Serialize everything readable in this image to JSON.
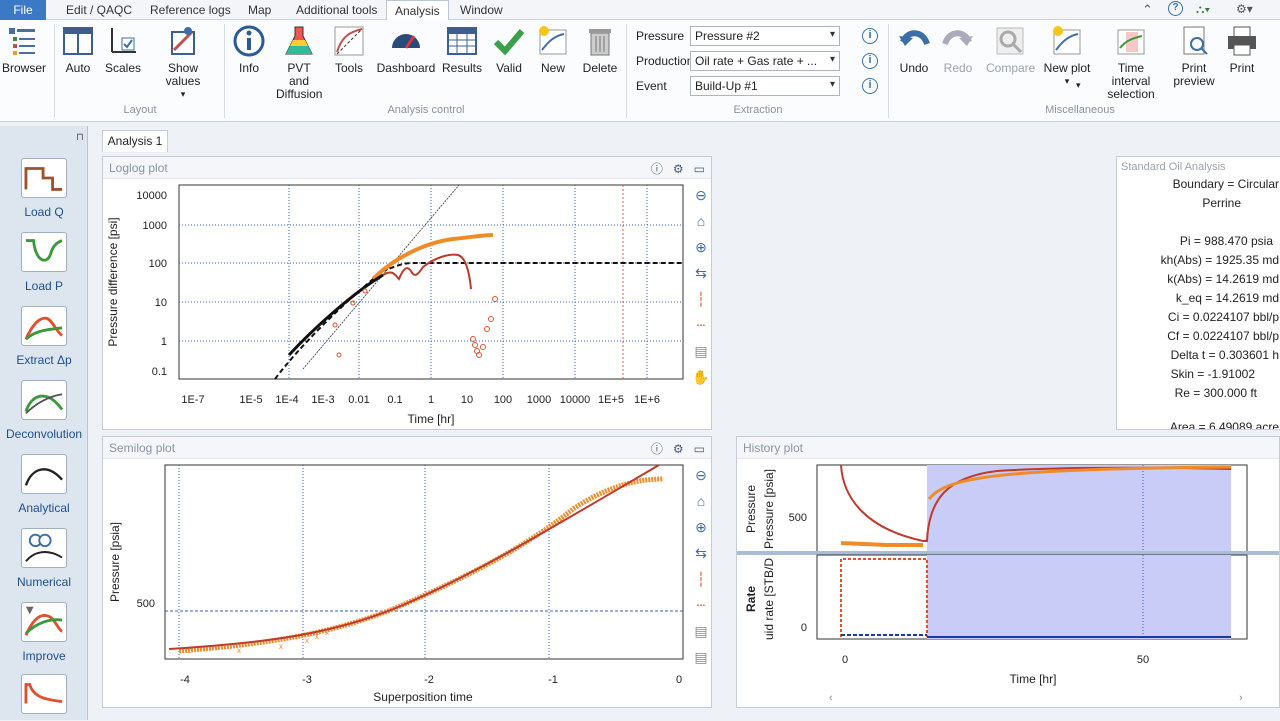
{
  "menu": {
    "file": "File",
    "items": [
      "Edit / QAQC",
      "Reference logs",
      "Map",
      "Additional tools",
      "Analysis",
      "Window"
    ],
    "active": "Analysis"
  },
  "ribbon": {
    "browser": "Browser",
    "layout": {
      "label": "Layout",
      "auto": "Auto",
      "scales": "Scales",
      "show_values": "Show values"
    },
    "analysis_control": {
      "label": "Analysis control",
      "info": "Info",
      "pvt_1": "PVT and",
      "pvt_2": "Diffusion",
      "tools": "Tools",
      "dashboard": "Dashboard",
      "results": "Results",
      "valid": "Valid",
      "new": "New",
      "delete": "Delete"
    },
    "extraction": {
      "label": "Extraction",
      "pressure_label": "Pressure",
      "pressure_value": "Pressure #2",
      "production_label": "Production",
      "production_value": "Oil rate + Gas rate + ...",
      "event_label": "Event",
      "event_value": "Build-Up #1"
    },
    "misc": {
      "label": "Miscellaneous",
      "undo": "Undo",
      "redo": "Redo",
      "compare": "Compare",
      "new_plot": "New plot",
      "time_interval_1": "Time interval",
      "time_interval_2": "selection",
      "print_preview_1": "Print",
      "print_preview_2": "preview",
      "print": "Print"
    }
  },
  "sidebar": [
    {
      "label": "Load Q",
      "icon": "load-q-icon"
    },
    {
      "label": "Load P",
      "icon": "load-p-icon"
    },
    {
      "label": "Extract Δp",
      "icon": "extract-dp-icon"
    },
    {
      "label": "Deconvolution",
      "icon": "deconvolution-icon"
    },
    {
      "label": "Analytical",
      "icon": "analytical-icon"
    },
    {
      "label": "Numerical",
      "icon": "numerical-icon"
    },
    {
      "label": "Improve",
      "icon": "improve-icon"
    }
  ],
  "analysis_tab": "Analysis 1",
  "loglog": {
    "title": "Loglog plot",
    "xlabel": "Time [hr]",
    "ylabel": "Pressure difference [psi]",
    "xticks": [
      "1E-7",
      "1E-5",
      "1E-4",
      "1E-3",
      "0.01",
      "0.1",
      "1",
      "10",
      "100",
      "1000",
      "10000",
      "1E+5",
      "1E+6"
    ],
    "yticks": [
      "10000",
      "1000",
      "100",
      "10",
      "1",
      "0.1"
    ]
  },
  "semilog": {
    "title": "Semilog plot",
    "xlabel": "Superposition time",
    "ylabel": "Pressure [psia]",
    "xticks": [
      "-4",
      "-3",
      "-2",
      "-1",
      "0"
    ],
    "ytick": "500"
  },
  "history": {
    "title": "History plot",
    "xlabel": "Time [hr]",
    "pressure_label": "Pressure",
    "pressure_axis": "Pressure [psia]",
    "pressure_tick": "500",
    "rate_label": "Rate",
    "rate_axis": "uid rate [STB/D",
    "rate_tick": "0",
    "xticks": [
      "0",
      "50"
    ]
  },
  "results": {
    "title": "Standard Oil Analysis",
    "lines": [
      "Boundary = Circular",
      "Perrine",
      "",
      "Pi = 988.470 psia",
      "kh(Abs) = 1925.35 md",
      "k(Abs) = 14.2619 md",
      "k_eq = 14.2619 md",
      "Ci = 0.0224107 bbl/p",
      "Cf = 0.0224107 bbl/p",
      "Delta t = 0.303601 h",
      "Skin = -1.91002",
      "Re = 300.000 ft",
      "",
      "Area = 6.49089 acre"
    ]
  },
  "chart_data": [
    {
      "type": "scatter",
      "title": "Loglog plot",
      "xlabel": "Time [hr]",
      "ylabel": "Pressure difference [psi]",
      "xscale": "log",
      "yscale": "log",
      "xlim": [
        1e-08,
        10000000.0
      ],
      "ylim": [
        0.05,
        20000
      ],
      "series": [
        {
          "values": [
            [
              0.0001,
              0.4
            ],
            [
              0.001,
              3
            ],
            [
              0.01,
              20
            ],
            [
              0.05,
              60
            ],
            [
              0.1,
              80
            ],
            [
              0.2,
              100
            ],
            [
              0.3,
              60
            ],
            [
              0.5,
              90
            ],
            [
              1,
              110
            ],
            [
              3,
              150
            ],
            [
              5,
              130
            ],
            [
              8,
              30
            ],
            [
              12,
              1
            ],
            [
              20,
              2
            ],
            [
              30,
              4
            ]
          ]
        },
        {
          "values": [
            [
              0.1,
              120
            ],
            [
              0.3,
              250
            ],
            [
              1,
              380
            ],
            [
              3,
              450
            ],
            [
              10,
              500
            ],
            [
              30,
              520
            ],
            [
              40,
              520
            ]
          ]
        }
      ]
    },
    {
      "type": "scatter",
      "title": "Semilog plot",
      "xlabel": "Superposition time",
      "ylabel": "Pressure [psia]",
      "xlim": [
        -4.1,
        0.05
      ],
      "series": [
        {
          "values": [
            [
              -4,
              280
            ],
            [
              -3,
              320
            ],
            [
              -2.5,
              380
            ],
            [
              -2,
              470
            ],
            [
              -1.5,
              620
            ],
            [
              -1,
              800
            ],
            [
              -0.5,
              920
            ],
            [
              -0.15,
              940
            ]
          ]
        }
      ]
    },
    {
      "type": "line",
      "title": "History plot",
      "xlabel": "Time [hr]",
      "xlim": [
        -3,
        70
      ],
      "series": [
        {
          "name": "Pressure",
          "values": [
            [
              0,
              960
            ],
            [
              1,
              700
            ],
            [
              5,
              560
            ],
            [
              14,
              520
            ],
            [
              15,
              800
            ],
            [
              20,
              930
            ],
            [
              40,
              960
            ],
            [
              65,
              965
            ]
          ]
        },
        {
          "name": "Rate",
          "values": [
            [
              0,
              0
            ],
            [
              0.1,
              1
            ],
            [
              14,
              1
            ],
            [
              14.1,
              0
            ],
            [
              65,
              0
            ]
          ]
        }
      ]
    }
  ]
}
